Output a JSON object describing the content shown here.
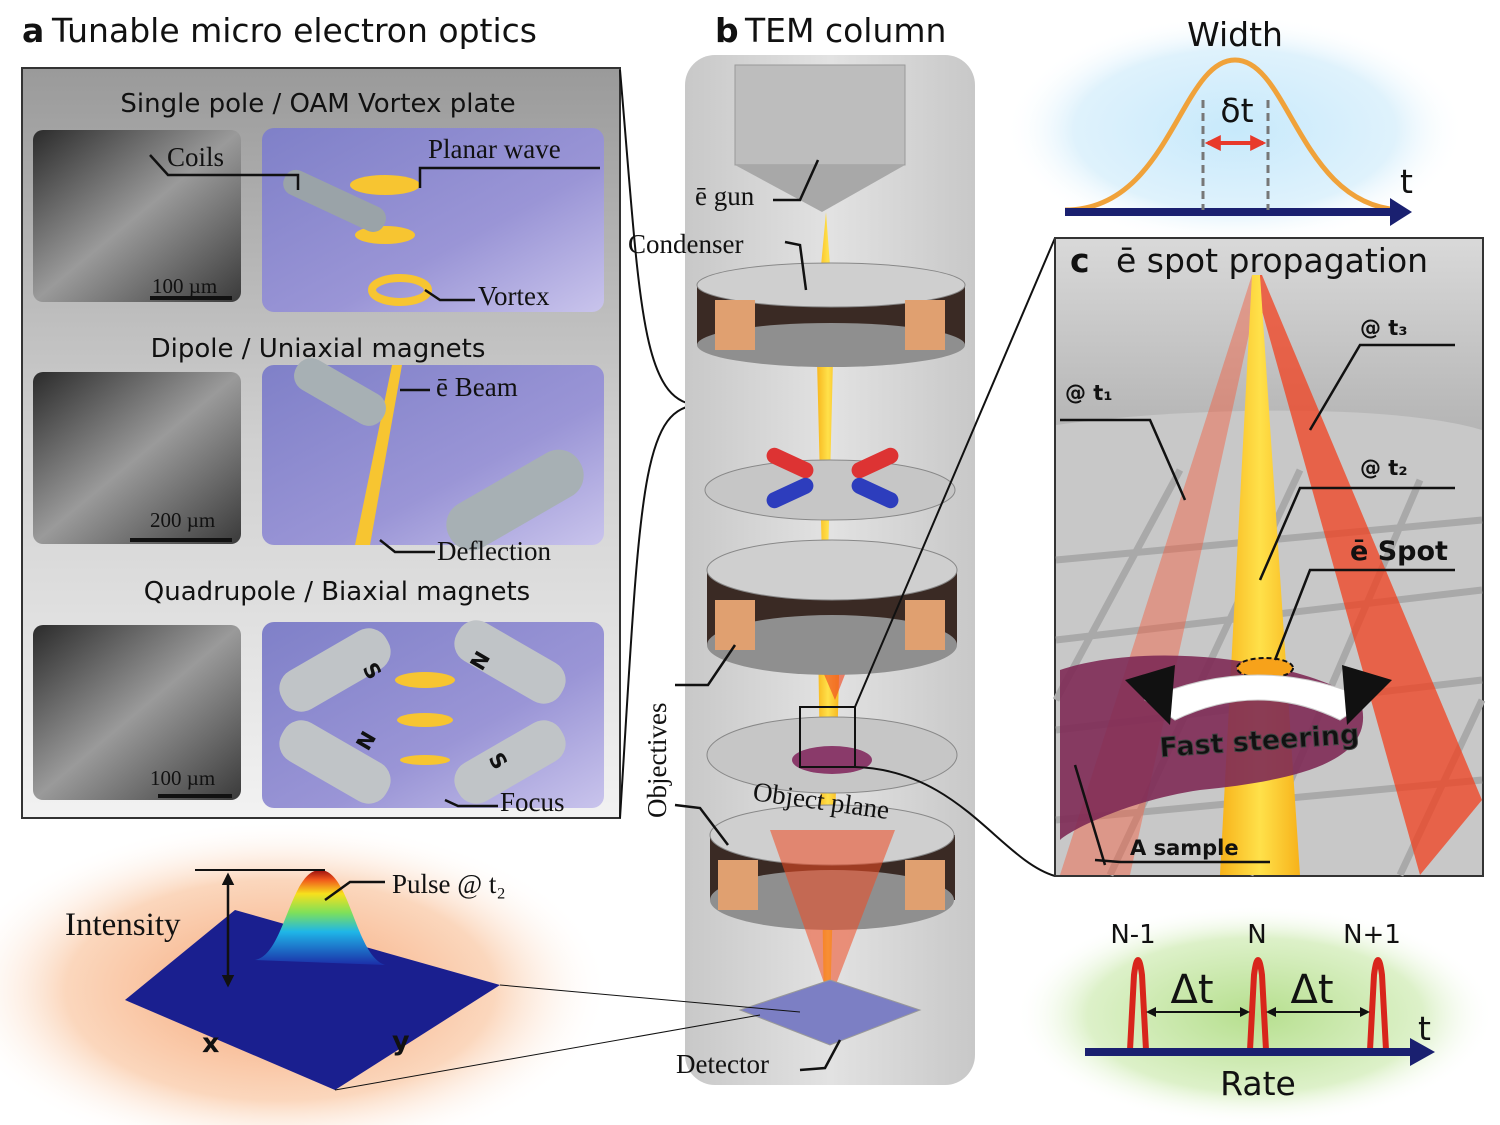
{
  "panel_a": {
    "letter": "a",
    "title": "Tunable micro electron optics",
    "rows": [
      {
        "heading": "Single pole / OAM Vortex plate",
        "scale_bar": "100 µm",
        "labels": [
          "Coils",
          "Planar wave",
          "Vortex"
        ]
      },
      {
        "heading": "Dipole / Uniaxial magnets",
        "scale_bar": "200 µm",
        "labels": [
          "ē Beam",
          "Deflection"
        ]
      },
      {
        "heading": "Quadrupole / Biaxial magnets",
        "scale_bar": "100 µm",
        "labels": [
          "Focus"
        ],
        "magnet_poles": [
          "S",
          "N",
          "N",
          "S"
        ]
      }
    ]
  },
  "intensity_plot": {
    "axis_label": "Intensity",
    "peak_label": "Pulse @ t₂",
    "x_label": "x",
    "y_label": "y"
  },
  "panel_b": {
    "letter": "b",
    "title": "TEM column",
    "components": [
      "ē gun",
      "Condenser",
      "Objectives",
      "Object plane",
      "Detector"
    ]
  },
  "pulse_width": {
    "title": "Width",
    "width_label": "δt",
    "axis_label": "t"
  },
  "panel_c": {
    "letter": "c",
    "title": "ē spot propagation",
    "labels": [
      "@ t₁",
      "@ t₂",
      "@ t₃",
      "ē Spot",
      "Fast steering",
      "A sample"
    ]
  },
  "pulse_rate": {
    "title": "Rate",
    "pulse_labels": [
      "N-1",
      "N",
      "N+1"
    ],
    "interval_labels": [
      "Δt",
      "Δt"
    ],
    "axis_label": "t"
  }
}
